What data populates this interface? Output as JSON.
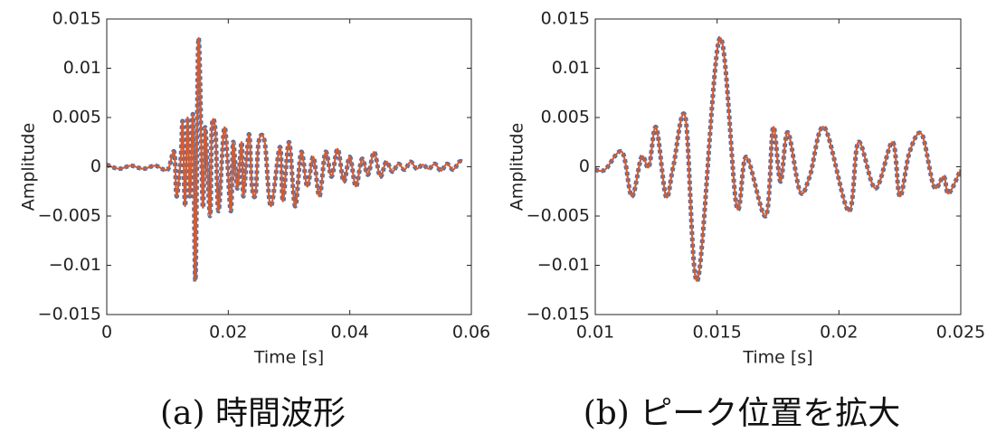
{
  "chart_data": [
    {
      "type": "line",
      "caption": "(a) 時間波形",
      "xlabel": "Time [s]",
      "ylabel": "Amplitude",
      "xlim": [
        0,
        0.06
      ],
      "xticks": [
        0,
        0.02,
        0.04,
        0.06
      ],
      "ylim": [
        -0.015,
        0.015
      ],
      "yticks": [
        {
          "value": -0.015,
          "label": "−0.015"
        },
        {
          "value": -0.01,
          "label": "−0.01"
        },
        {
          "value": -0.005,
          "label": "−0.005"
        },
        0,
        0.005,
        0.01,
        0.015
      ],
      "x": [
        0,
        0.002,
        0.004,
        0.006,
        0.008,
        0.01,
        0.0111,
        0.0115,
        0.0122,
        0.0125,
        0.0129,
        0.0133,
        0.0137,
        0.0142,
        0.0146,
        0.0151,
        0.0158,
        0.0162,
        0.017,
        0.0173,
        0.0179,
        0.0184,
        0.0194,
        0.0204,
        0.0208,
        0.0215,
        0.0222,
        0.0225,
        0.0234,
        0.0239,
        0.0245,
        0.025,
        0.026,
        0.027,
        0.0285,
        0.029,
        0.03,
        0.031,
        0.032,
        0.033,
        0.034,
        0.035,
        0.036,
        0.037,
        0.038,
        0.039,
        0.04,
        0.041,
        0.042,
        0.043,
        0.044,
        0.045,
        0.046,
        0.047,
        0.048,
        0.049,
        0.05,
        0.051,
        0.052,
        0.053,
        0.054,
        0.055,
        0.056,
        0.057,
        0.058,
        0.0585
      ],
      "series": [
        {
          "color": "#4a72b0",
          "line_style": "dotted",
          "values": [
            0.0002,
            -0.0002,
            0.0001,
            -0.0002,
            0.0001,
            -0.0003,
            0.0015,
            -0.003,
            0.001,
            0.0045,
            -0.004,
            0.005,
            -0.003,
            0.0052,
            -0.0115,
            0.013,
            -0.004,
            0.004,
            -0.005,
            0.004,
            0.0035,
            -0.0045,
            0.004,
            -0.0045,
            0.0025,
            -0.0022,
            0.0025,
            -0.003,
            0.0033,
            -0.002,
            -0.0027,
            0.0025,
            0.0025,
            -0.004,
            0.002,
            -0.0035,
            0.0025,
            -0.004,
            0.0015,
            -0.002,
            0.001,
            -0.003,
            0.0015,
            -0.001,
            0.0018,
            -0.0015,
            0.001,
            -0.002,
            0.0008,
            -0.0008,
            0.0015,
            -0.001,
            0.0005,
            -0.0005,
            0.0003,
            -0.0003,
            0.0005,
            -0.0002,
            0.0002,
            -0.0002,
            0.0003,
            -0.0004,
            0.0003,
            -0.0003,
            0.0005,
            0.0005
          ]
        },
        {
          "color": "#d95a2b",
          "line_style": "solid",
          "values": [
            0.0002,
            -0.0002,
            0.0001,
            -0.0002,
            0.0001,
            -0.0003,
            0.0015,
            -0.003,
            0.001,
            0.0045,
            -0.004,
            0.005,
            -0.003,
            0.0052,
            -0.0115,
            0.013,
            -0.004,
            0.004,
            -0.005,
            0.004,
            0.0035,
            -0.0045,
            0.004,
            -0.0045,
            0.0025,
            -0.0022,
            0.0025,
            -0.003,
            0.0033,
            -0.002,
            -0.0027,
            0.0025,
            0.0025,
            -0.004,
            0.002,
            -0.0035,
            0.0025,
            -0.004,
            0.0015,
            -0.002,
            0.001,
            -0.003,
            0.0015,
            -0.001,
            0.0018,
            -0.0015,
            0.001,
            -0.002,
            0.0008,
            -0.0008,
            0.0015,
            -0.001,
            0.0005,
            -0.0005,
            0.0003,
            -0.0003,
            0.0005,
            -0.0002,
            0.0002,
            -0.0002,
            0.0003,
            -0.0004,
            0.0003,
            -0.0003,
            0.0005,
            0.0005
          ]
        }
      ]
    },
    {
      "type": "line",
      "caption": "(b) ピーク位置を拡大",
      "xlabel": "Time [s]",
      "ylabel": "Amplitude",
      "xlim": [
        0.01,
        0.025
      ],
      "xticks": [
        0.01,
        0.015,
        0.02,
        0.025
      ],
      "ylim": [
        -0.015,
        0.015
      ],
      "yticks": [
        {
          "value": -0.015,
          "label": "−0.015"
        },
        {
          "value": -0.01,
          "label": "−0.01"
        },
        {
          "value": -0.005,
          "label": "−0.005"
        },
        0,
        0.005,
        0.01,
        0.015
      ],
      "x": [
        0.01,
        0.0104,
        0.0111,
        0.0115,
        0.0119,
        0.0122,
        0.0125,
        0.0129,
        0.0132,
        0.0137,
        0.0142,
        0.0151,
        0.0158,
        0.0162,
        0.017,
        0.0173,
        0.0176,
        0.0179,
        0.0184,
        0.0188,
        0.0194,
        0.0204,
        0.0208,
        0.0215,
        0.0222,
        0.0225,
        0.0229,
        0.0234,
        0.0239,
        0.0243,
        0.0245,
        0.025
      ],
      "series": [
        {
          "color": "#4a72b0",
          "line_style": "dotted",
          "values": [
            -0.0003,
            -0.0003,
            0.0015,
            -0.003,
            0.001,
            0,
            0.004,
            -0.003,
            0,
            0.005,
            -0.0115,
            0.013,
            -0.004,
            0.001,
            -0.005,
            0.004,
            -0.0015,
            0.0035,
            -0.0025,
            -0.001,
            0.004,
            -0.0045,
            0.0025,
            -0.0022,
            0.0025,
            -0.003,
            0.0015,
            0.0033,
            -0.002,
            -0.001,
            -0.0027,
            -0.0003
          ]
        },
        {
          "color": "#d95a2b",
          "line_style": "solid",
          "values": [
            -0.0003,
            -0.0003,
            0.0015,
            -0.003,
            0.001,
            0,
            0.004,
            -0.003,
            0,
            0.005,
            -0.0115,
            0.013,
            -0.004,
            0.001,
            -0.005,
            0.004,
            -0.0015,
            0.0035,
            -0.0025,
            -0.001,
            0.004,
            -0.0045,
            0.0025,
            -0.0022,
            0.0025,
            -0.003,
            0.0015,
            0.0033,
            -0.002,
            -0.001,
            -0.0027,
            -0.0003
          ]
        }
      ]
    }
  ]
}
